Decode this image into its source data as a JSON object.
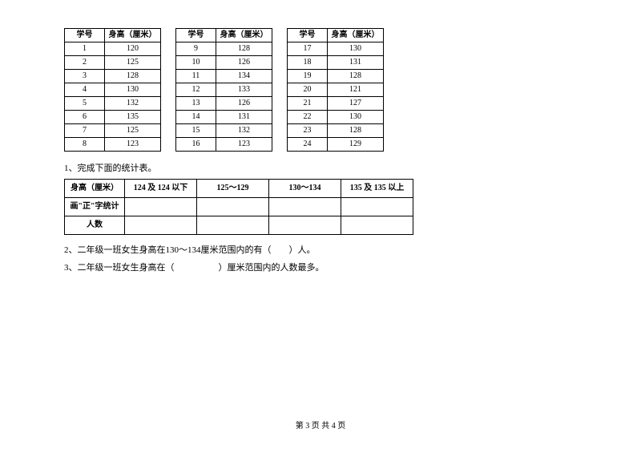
{
  "data_tables": {
    "header_id": "学号",
    "header_height": "身高（厘米）",
    "groups": [
      {
        "rows": [
          {
            "id": "1",
            "height": "120"
          },
          {
            "id": "2",
            "height": "125"
          },
          {
            "id": "3",
            "height": "128"
          },
          {
            "id": "4",
            "height": "130"
          },
          {
            "id": "5",
            "height": "132"
          },
          {
            "id": "6",
            "height": "135"
          },
          {
            "id": "7",
            "height": "125"
          },
          {
            "id": "8",
            "height": "123"
          }
        ]
      },
      {
        "rows": [
          {
            "id": "9",
            "height": "128"
          },
          {
            "id": "10",
            "height": "126"
          },
          {
            "id": "11",
            "height": "134"
          },
          {
            "id": "12",
            "height": "133"
          },
          {
            "id": "13",
            "height": "126"
          },
          {
            "id": "14",
            "height": "131"
          },
          {
            "id": "15",
            "height": "132"
          },
          {
            "id": "16",
            "height": "123"
          }
        ]
      },
      {
        "rows": [
          {
            "id": "17",
            "height": "130"
          },
          {
            "id": "18",
            "height": "131"
          },
          {
            "id": "19",
            "height": "128"
          },
          {
            "id": "20",
            "height": "121"
          },
          {
            "id": "21",
            "height": "127"
          },
          {
            "id": "22",
            "height": "130"
          },
          {
            "id": "23",
            "height": "128"
          },
          {
            "id": "24",
            "height": "129"
          }
        ]
      }
    ]
  },
  "question1": "1、完成下面的统计表。",
  "stats_table": {
    "row1_label": "身高（厘米）",
    "ranges": [
      "124 及 124 以下",
      "125～129",
      "130～134",
      "135 及 135 以上"
    ],
    "row2_label": "画\"正\"字统计",
    "row3_label": "人数"
  },
  "question2": "2、二年级一班女生身高在130～134厘米范围内的有（　　）人。",
  "question3": "3、二年级一班女生身高在（　　　　　）厘米范围内的人数最多。",
  "footer": "第 3 页 共 4 页"
}
